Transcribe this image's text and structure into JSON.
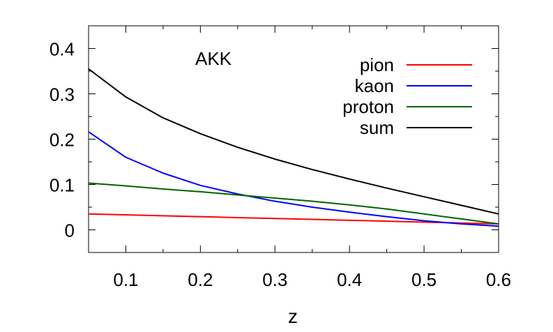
{
  "chart_data": {
    "type": "line",
    "title": "AKK",
    "xlabel": "z",
    "ylabel": "",
    "xlim": [
      0.05,
      0.6
    ],
    "ylim": [
      -0.05,
      0.45
    ],
    "xticks": [
      "0.1",
      "0.2",
      "0.3",
      "0.4",
      "0.5",
      "0.6"
    ],
    "yticks": [
      "0",
      "0.1",
      "0.2",
      "0.3",
      "0.4"
    ],
    "grid": false,
    "legend_position": "top-right",
    "series": [
      {
        "name": "pion",
        "color": "#ff0000",
        "x": [
          0.05,
          0.1,
          0.15,
          0.2,
          0.25,
          0.3,
          0.35,
          0.4,
          0.45,
          0.5,
          0.55,
          0.6
        ],
        "y": [
          0.035,
          0.033,
          0.031,
          0.029,
          0.027,
          0.025,
          0.023,
          0.021,
          0.019,
          0.017,
          0.015,
          0.013
        ]
      },
      {
        "name": "kaon",
        "color": "#0000ff",
        "x": [
          0.05,
          0.1,
          0.15,
          0.2,
          0.25,
          0.3,
          0.35,
          0.4,
          0.45,
          0.5,
          0.55,
          0.6
        ],
        "y": [
          0.216,
          0.16,
          0.125,
          0.098,
          0.079,
          0.063,
          0.05,
          0.039,
          0.029,
          0.02,
          0.013,
          0.008
        ]
      },
      {
        "name": "proton",
        "color": "#006400",
        "x": [
          0.05,
          0.1,
          0.15,
          0.2,
          0.25,
          0.3,
          0.35,
          0.4,
          0.45,
          0.5,
          0.55,
          0.6
        ],
        "y": [
          0.103,
          0.097,
          0.09,
          0.084,
          0.077,
          0.07,
          0.063,
          0.055,
          0.046,
          0.035,
          0.024,
          0.013
        ]
      },
      {
        "name": "sum",
        "color": "#000000",
        "x": [
          0.05,
          0.1,
          0.15,
          0.2,
          0.25,
          0.3,
          0.35,
          0.4,
          0.45,
          0.5,
          0.55,
          0.6
        ],
        "y": [
          0.355,
          0.293,
          0.247,
          0.212,
          0.182,
          0.156,
          0.133,
          0.112,
          0.092,
          0.073,
          0.054,
          0.035
        ]
      }
    ]
  }
}
